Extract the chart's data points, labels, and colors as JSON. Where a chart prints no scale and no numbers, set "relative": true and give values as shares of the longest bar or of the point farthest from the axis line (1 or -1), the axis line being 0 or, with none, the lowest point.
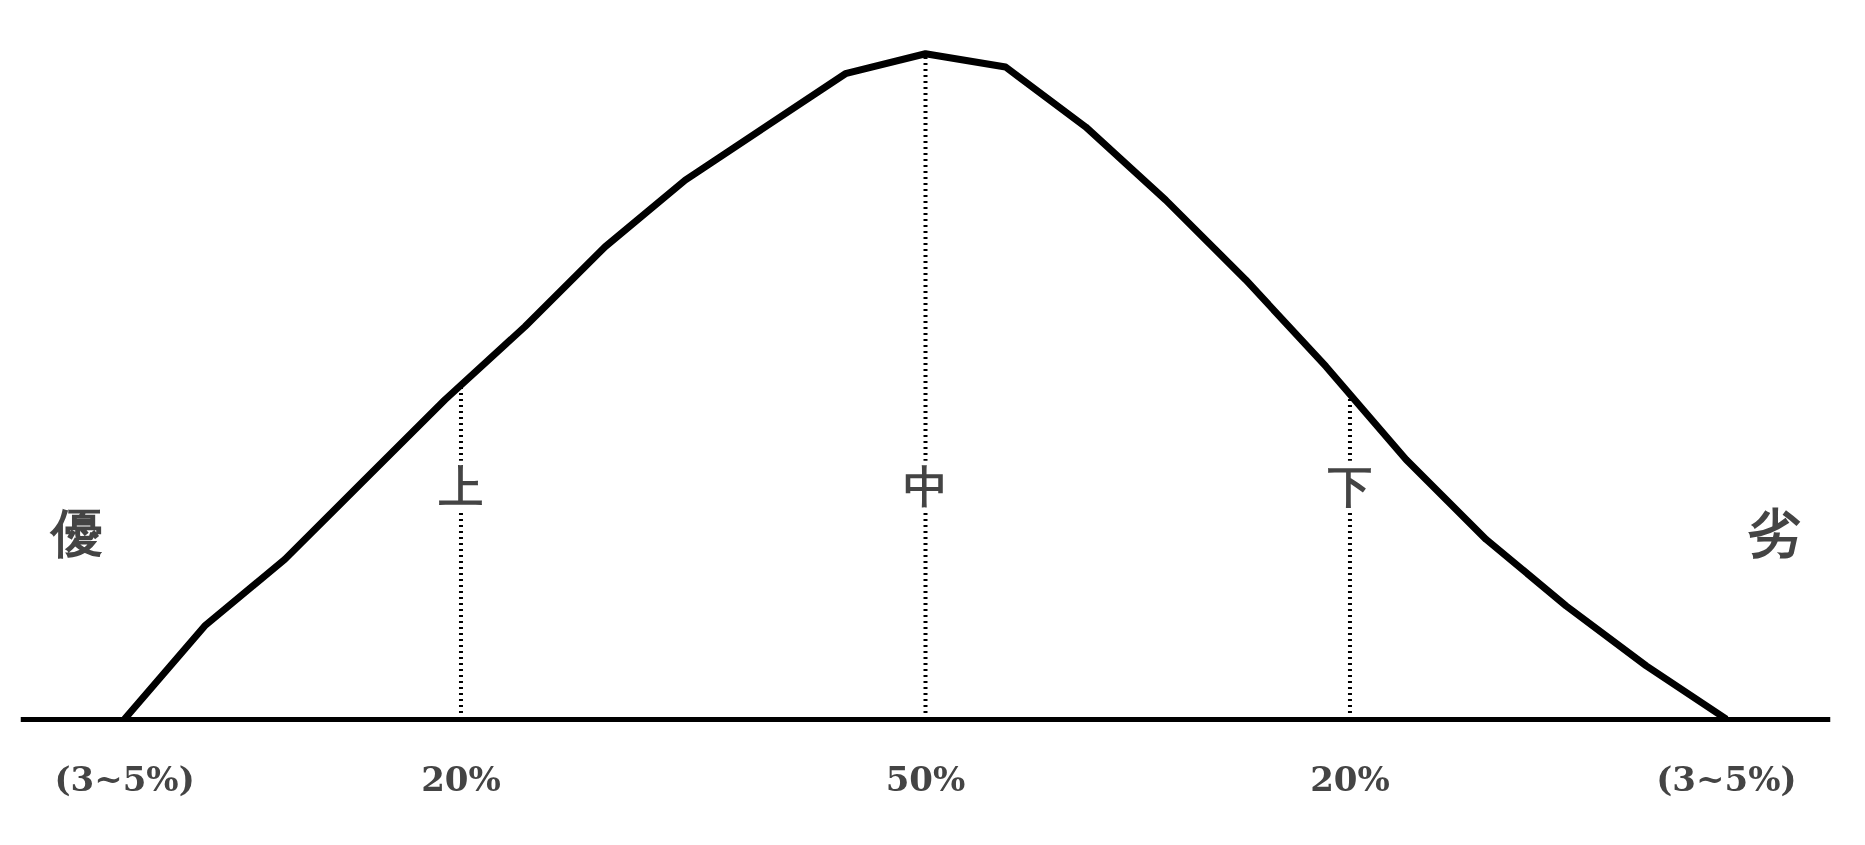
{
  "chart_data": {
    "type": "line",
    "relative": true,
    "categories": [
      null,
      null,
      null,
      null,
      null,
      null,
      null,
      null,
      null,
      null,
      null,
      null,
      null,
      null,
      null,
      null,
      null,
      null,
      null,
      null,
      null
    ],
    "series": [
      {
        "color": "#000000",
        "values": [
          0,
          0.14,
          0.24,
          0.36,
          0.48,
          0.59,
          0.71,
          0.81,
          0.89,
          0.97,
          1,
          0.98,
          0.89,
          0.78,
          0.66,
          0.53,
          0.39,
          0.27,
          0.17,
          0.08,
          0
        ]
      }
    ],
    "annotations": [
      "優",
      "上",
      "中",
      "下",
      "劣",
      "(3~5%)",
      "20%",
      "50%",
      "20%",
      "(3~5%)"
    ],
    "grid": false,
    "marker": "none",
    "line_style": "solid"
  }
}
